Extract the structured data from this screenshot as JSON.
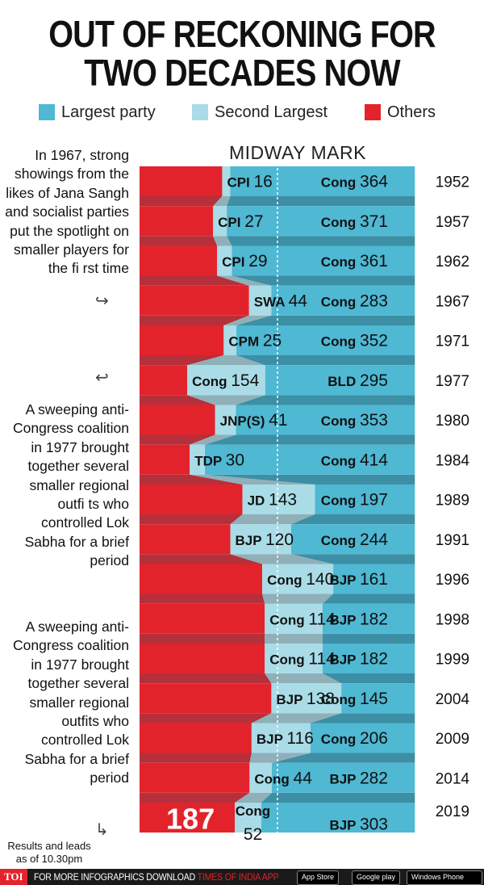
{
  "title_line1": "OUT OF RECKONING FOR",
  "title_line2": "TWO DECADES NOW",
  "legend": [
    {
      "label": "Largest party",
      "color": "#4fb8d3"
    },
    {
      "label": "Second Largest",
      "color": "#a9dce7"
    },
    {
      "label": "Others",
      "color": "#e3232b"
    }
  ],
  "midway_label": "MIDWAY MARK",
  "notes": {
    "note1": "In 1967, strong showings from the likes of Jana Sangh and socialist parties put the spotlight on smaller players for the fi rst time",
    "note2": "A sweeping anti-Congress coalition in 1977 brought together several smaller regional outfi ts who controlled Lok Sabha for a brief period",
    "note3": "A sweeping anti-Congress coalition in 1977 brought together several smaller regional outfits who controlled Lok Sabha for a brief period"
  },
  "footnote": "Results and leads as of 10.30pm",
  "footer": {
    "logo": "TOI",
    "text": "FOR MORE  INFOGRAPHICS DOWNLOAD",
    "brand": "TIMES OF INDIA APP",
    "app_store": "App Store",
    "google_play": "Google play",
    "windows_phone": "Windows Phone"
  },
  "chart_data": {
    "type": "bar",
    "stacked": true,
    "orientation": "horizontal",
    "midway_mark": true,
    "colors": {
      "largest": "#4fb8d3",
      "second": "#a9dce7",
      "others": "#e3232b"
    },
    "categories": [
      "1952",
      "1957",
      "1962",
      "1967",
      "1971",
      "1977",
      "1980",
      "1984",
      "1989",
      "1991",
      "1996",
      "1998",
      "1999",
      "2004",
      "2009",
      "2014",
      "2019"
    ],
    "largest_party": {
      "names": [
        "Cong",
        "Cong",
        "Cong",
        "Cong",
        "Cong",
        "BLD",
        "Cong",
        "Cong",
        "Cong",
        "Cong",
        "BJP",
        "BJP",
        "BJP",
        "Cong",
        "Cong",
        "BJP",
        "BJP"
      ],
      "values": [
        364,
        371,
        361,
        283,
        352,
        295,
        353,
        414,
        197,
        244,
        161,
        182,
        182,
        145,
        206,
        282,
        303
      ]
    },
    "second_largest": {
      "names": [
        "CPI",
        "CPI",
        "CPI",
        "SWA",
        "CPM",
        "Cong",
        "JNP(S)",
        "TDP",
        "JD",
        "BJP",
        "Cong",
        "Cong",
        "Cong",
        "BJP",
        "BJP",
        "Cong",
        "Cong"
      ],
      "values": [
        16,
        27,
        29,
        44,
        25,
        154,
        41,
        30,
        143,
        120,
        140,
        114,
        114,
        138,
        116,
        44,
        52
      ]
    },
    "others": {
      "values": [
        null,
        null,
        null,
        null,
        null,
        null,
        null,
        null,
        null,
        null,
        null,
        null,
        null,
        null,
        null,
        null,
        187
      ],
      "labels": [
        "",
        "",
        "",
        "",
        "",
        "",
        "",
        "",
        "",
        "",
        "",
        "",
        "",
        "",
        "",
        "",
        "187"
      ]
    }
  }
}
